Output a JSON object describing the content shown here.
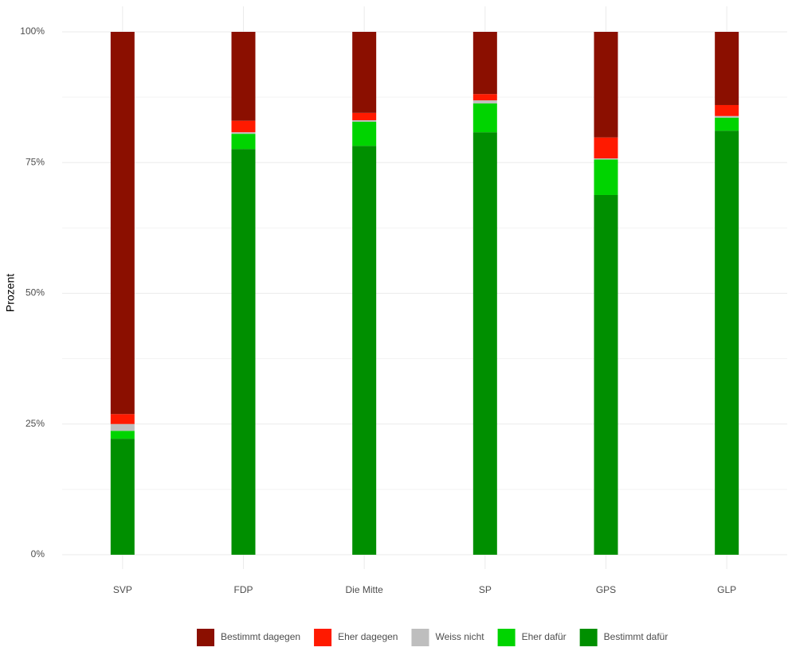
{
  "chart_data": {
    "type": "stacked-bar",
    "y_label": "Prozent",
    "categories": [
      "SVP",
      "FDP",
      "Die Mitte",
      "SP",
      "GPS",
      "GLP"
    ],
    "series": [
      {
        "name": "Bestimmt dagegen",
        "color": "#8b0f00",
        "values": [
          73.1,
          17.0,
          15.5,
          11.9,
          20.2,
          14.0
        ]
      },
      {
        "name": "Eher dagegen",
        "color": "#ff1a00",
        "values": [
          1.9,
          2.2,
          1.4,
          1.2,
          4.0,
          2.1
        ]
      },
      {
        "name": "Weiss nicht",
        "color": "#bebebe",
        "values": [
          1.3,
          0.3,
          0.3,
          0.6,
          0.2,
          0.3
        ]
      },
      {
        "name": "Eher dafür",
        "color": "#00d400",
        "values": [
          1.5,
          2.9,
          4.6,
          5.5,
          6.8,
          2.5
        ]
      },
      {
        "name": "Bestimmt dafür",
        "color": "#008f00",
        "values": [
          22.2,
          77.6,
          78.2,
          80.8,
          68.8,
          81.1
        ]
      }
    ],
    "ylim": [
      0,
      100
    ],
    "yticks": [
      {
        "value": 0,
        "label": "0%"
      },
      {
        "value": 25,
        "label": "25%"
      },
      {
        "value": 50,
        "label": "50%"
      },
      {
        "value": 75,
        "label": "75%"
      },
      {
        "value": 100,
        "label": "100%"
      }
    ],
    "grid": true,
    "legend": "bottom"
  }
}
